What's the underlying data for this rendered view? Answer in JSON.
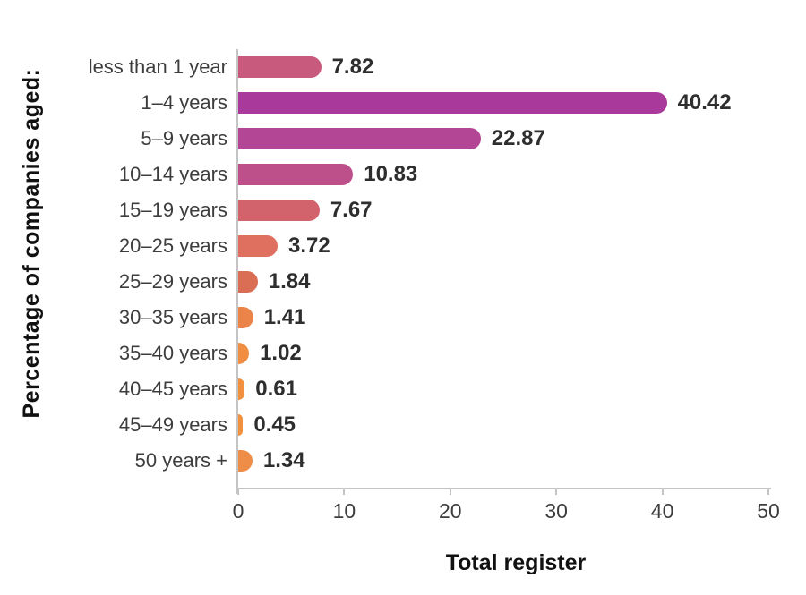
{
  "chart_data": {
    "type": "bar",
    "orientation": "horizontal",
    "xlabel": "Total register",
    "ylabel": "Percentage of companies aged:",
    "categories": [
      "less than 1 year",
      "1–4 years",
      "5–9 years",
      "10–14 years",
      "15–19 years",
      "20–25 years",
      "25–29 years",
      "30–35 years",
      "35–40 years",
      "40–45 years",
      "45–49 years",
      "50 years +"
    ],
    "values": [
      7.82,
      40.42,
      22.87,
      10.83,
      7.67,
      3.72,
      1.84,
      1.41,
      1.02,
      0.61,
      0.45,
      1.34
    ],
    "value_labels": [
      "7.82",
      "40.42",
      "22.87",
      "10.83",
      "7.67",
      "3.72",
      "1.84",
      "1.41",
      "1.02",
      "0.61",
      "0.45",
      "1.34"
    ],
    "bar_colors": [
      "#c85b7d",
      "#a93a9b",
      "#b44795",
      "#bd4f8a",
      "#d2626c",
      "#df6f5e",
      "#d96e54",
      "#ea8449",
      "#f08f43",
      "#f19140",
      "#f19140",
      "#ee8d48"
    ],
    "xlim": [
      0,
      50
    ],
    "xticks": [
      0,
      10,
      20,
      30,
      40,
      50
    ],
    "grid": false,
    "legend_position": "none",
    "colors": {
      "axis": "#c4c4c4",
      "category_label": "#3d3d3d",
      "tick_label": "#3d3d3d",
      "value_label": "#2e2e2e",
      "title_text": "#111111",
      "background": "#ffffff"
    }
  }
}
